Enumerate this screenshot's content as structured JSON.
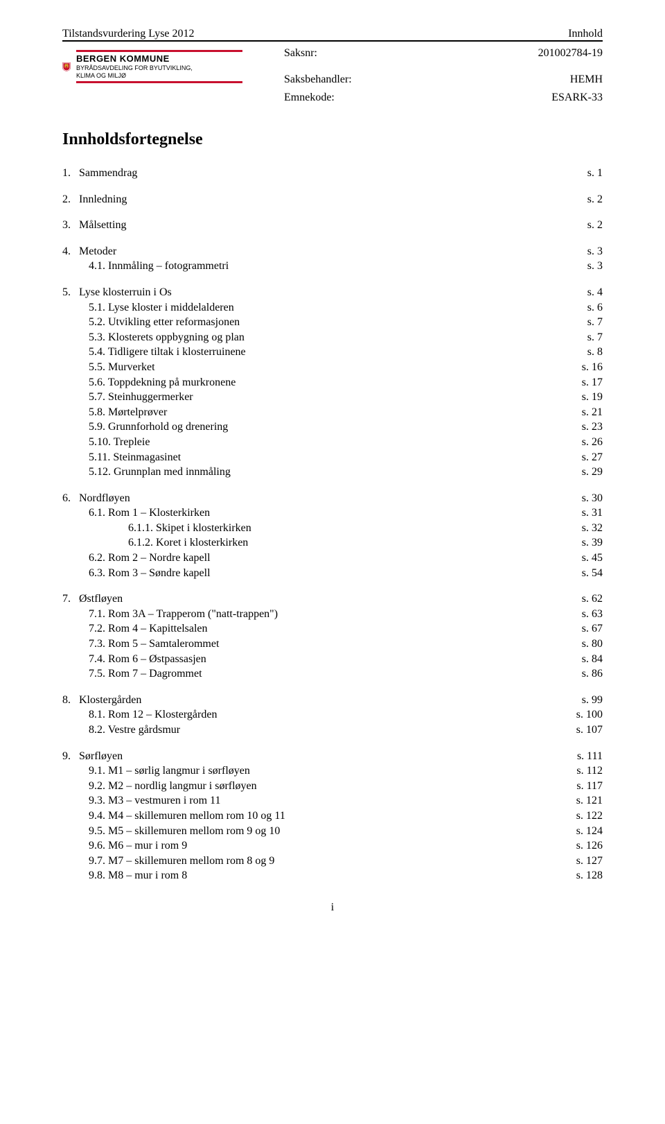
{
  "header": {
    "left": "Tilstandsvurdering Lyse 2012",
    "right": "Innhold"
  },
  "meta": {
    "saksnr_label": "Saksnr:",
    "saksnr_value": "201002784-19",
    "saksbehandler_label": "Saksbehandler:",
    "saksbehandler_value": "HEMH",
    "emnekode_label": "Emnekode:",
    "emnekode_value": "ESARK-33"
  },
  "logo": {
    "org": "BERGEN KOMMUNE",
    "dept1": "BYRÅDSAVDELING FOR BYUTVIKLING,",
    "dept2": "KLIMA OG MILJØ"
  },
  "title": "Innholdsfortegnelse",
  "toc": [
    {
      "num": "1.",
      "text": "Sammendrag",
      "page": "s. 1",
      "level": 0
    },
    {
      "gap": true
    },
    {
      "num": "2.",
      "text": "Innledning",
      "page": "s. 2",
      "level": 0
    },
    {
      "gap": true
    },
    {
      "num": "3.",
      "text": "Målsetting",
      "page": "s. 2",
      "level": 0
    },
    {
      "gap": true
    },
    {
      "num": "4.",
      "text": "Metoder",
      "page": "s. 3",
      "level": 0
    },
    {
      "num": "4.1.",
      "text": "Innmåling – fotogrammetri",
      "page": "s. 3",
      "level": 1
    },
    {
      "gap": true
    },
    {
      "num": "5.",
      "text": "Lyse klosterruin i Os",
      "page": "s. 4",
      "level": 0
    },
    {
      "num": "5.1.",
      "text": "Lyse kloster i middelalderen",
      "page": "s. 6",
      "level": 1
    },
    {
      "num": "5.2.",
      "text": "Utvikling etter reformasjonen",
      "page": "s. 7",
      "level": 1
    },
    {
      "num": "5.3.",
      "text": "Klosterets oppbygning og plan",
      "page": "s. 7",
      "level": 1
    },
    {
      "num": "5.4.",
      "text": "Tidligere tiltak i klosterruinene",
      "page": "s. 8",
      "level": 1
    },
    {
      "num": "5.5.",
      "text": "Murverket",
      "page": "s. 16",
      "level": 1
    },
    {
      "num": "5.6.",
      "text": "Toppdekning på murkronene",
      "page": "s. 17",
      "level": 1
    },
    {
      "num": "5.7.",
      "text": "Steinhuggermerker",
      "page": "s. 19",
      "level": 1
    },
    {
      "num": "5.8.",
      "text": "Mørtelprøver",
      "page": "s. 21",
      "level": 1
    },
    {
      "num": "5.9.",
      "text": "Grunnforhold og drenering",
      "page": "s. 23",
      "level": 1
    },
    {
      "num": "5.10.",
      "text": "Trepleie",
      "page": "s. 26",
      "level": 1
    },
    {
      "num": "5.11.",
      "text": "Steinmagasinet",
      "page": "s. 27",
      "level": 1
    },
    {
      "num": "5.12.",
      "text": "Grunnplan med innmåling",
      "page": "s. 29",
      "level": 1
    },
    {
      "gap": true
    },
    {
      "num": "6.",
      "text": "Nordfløyen",
      "page": "s. 30",
      "level": 0
    },
    {
      "num": "6.1.",
      "text": "Rom 1 – Klosterkirken",
      "page": "s. 31",
      "level": 1
    },
    {
      "num": "6.1.1.",
      "text": "Skipet i klosterkirken",
      "page": "s. 32",
      "level": 2
    },
    {
      "num": "6.1.2.",
      "text": "Koret i klosterkirken",
      "page": "s. 39",
      "level": 2
    },
    {
      "num": "6.2.",
      "text": "Rom 2 – Nordre kapell",
      "page": "s. 45",
      "level": 1
    },
    {
      "num": "6.3.",
      "text": "Rom 3 – Søndre kapell",
      "page": "s. 54",
      "level": 1
    },
    {
      "gap": true
    },
    {
      "num": "7.",
      "text": "Østfløyen",
      "page": "s. 62",
      "level": 0
    },
    {
      "num": "7.1.",
      "text": "Rom 3A – Trapperom (\"natt-trappen\")",
      "page": "s. 63",
      "level": 1
    },
    {
      "num": "7.2.",
      "text": "Rom 4 – Kapittelsalen",
      "page": "s. 67",
      "level": 1
    },
    {
      "num": "7.3.",
      "text": "Rom 5 – Samtalerommet",
      "page": "s. 80",
      "level": 1
    },
    {
      "num": "7.4.",
      "text": "Rom 6 – Østpassasjen",
      "page": "s. 84",
      "level": 1
    },
    {
      "num": "7.5.",
      "text": "Rom 7 – Dagrommet",
      "page": "s. 86",
      "level": 1
    },
    {
      "gap": true
    },
    {
      "num": "8.",
      "text": "Klostergården",
      "page": "s. 99",
      "level": 0
    },
    {
      "num": "8.1.",
      "text": "Rom 12 – Klostergården",
      "page": "s. 100",
      "level": 1
    },
    {
      "num": "8.2.",
      "text": "Vestre gårdsmur",
      "page": "s. 107",
      "level": 1
    },
    {
      "gap": true
    },
    {
      "num": "9.",
      "text": "Sørfløyen",
      "page": "s. 111",
      "level": 0
    },
    {
      "num": "9.1.",
      "text": "M1 – sørlig langmur i sørfløyen",
      "page": "s. 112",
      "level": 1
    },
    {
      "num": "9.2.",
      "text": "M2 – nordlig langmur i sørfløyen",
      "page": "s. 117",
      "level": 1
    },
    {
      "num": "9.3.",
      "text": "M3 – vestmuren i rom 11",
      "page": "s. 121",
      "level": 1
    },
    {
      "num": "9.4.",
      "text": "M4 – skillemuren mellom rom 10 og 11",
      "page": "s. 122",
      "level": 1
    },
    {
      "num": "9.5.",
      "text": "M5 – skillemuren mellom rom 9 og 10",
      "page": "s. 124",
      "level": 1
    },
    {
      "num": "9.6.",
      "text": "M6 – mur i rom 9",
      "page": "s. 126",
      "level": 1
    },
    {
      "num": "9.7.",
      "text": "M7 – skillemuren mellom rom 8 og 9",
      "page": "s. 127",
      "level": 1
    },
    {
      "num": "9.8.",
      "text": "M8 – mur i rom 8",
      "page": "s. 128",
      "level": 1
    }
  ],
  "footer": "i",
  "colors": {
    "text": "#000000",
    "background": "#ffffff",
    "accent_red": "#c8102e",
    "crest_gold": "#d4a628",
    "crest_red": "#c8102e"
  }
}
